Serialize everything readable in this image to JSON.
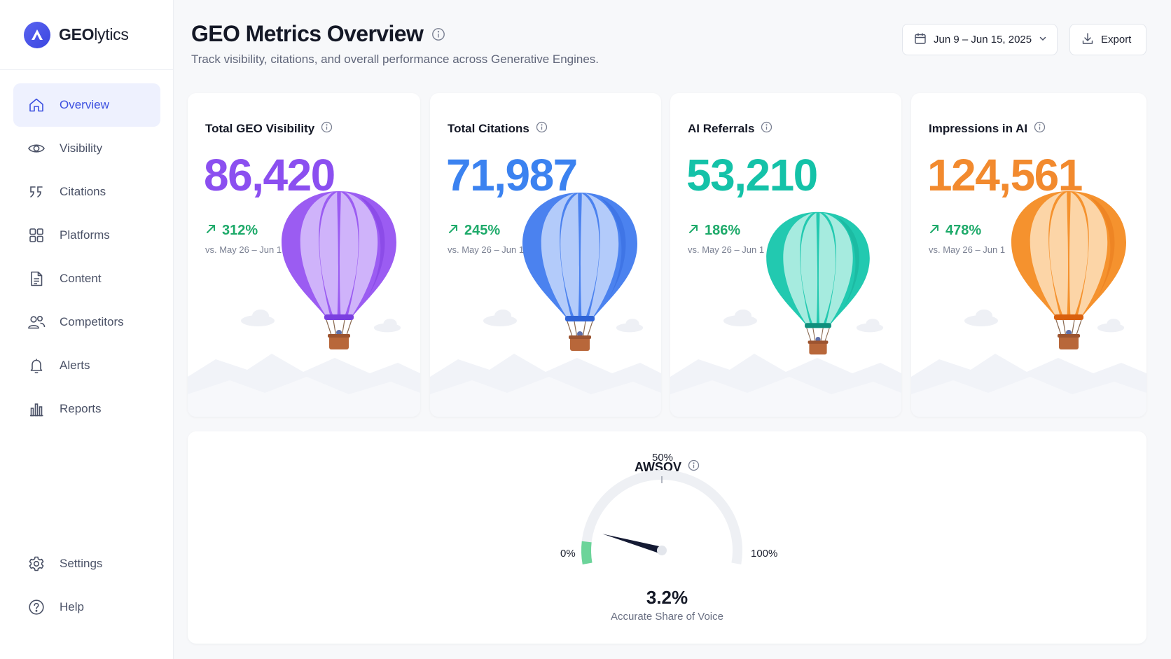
{
  "app": {
    "brand_prefix": "GEO",
    "brand_suffix": "lytics"
  },
  "sidebar": {
    "items": [
      {
        "label": "Overview",
        "icon": "home-icon",
        "active": true
      },
      {
        "label": "Visibility",
        "icon": "eye-icon"
      },
      {
        "label": "Citations",
        "icon": "quote-icon"
      },
      {
        "label": "Platforms",
        "icon": "grid-icon"
      },
      {
        "label": "Content",
        "icon": "document-icon"
      },
      {
        "label": "Competitors",
        "icon": "users-icon"
      },
      {
        "label": "Alerts",
        "icon": "bell-icon"
      },
      {
        "label": "Reports",
        "icon": "bar-chart-icon"
      }
    ],
    "bottom_items": [
      {
        "label": "Settings",
        "icon": "gear-icon"
      },
      {
        "label": "Help",
        "icon": "help-circle-icon"
      }
    ]
  },
  "header": {
    "title": "GEO Metrics Overview",
    "subtitle": "Track visibility, citations, and overall performance across Generative Engines.",
    "date_range": "Jun 9 – Jun 15, 2025",
    "export_label": "Export"
  },
  "cards": [
    {
      "title": "Total GEO Visibility",
      "value": "86,420",
      "delta": "312%",
      "compare": "vs. May 26 – Jun 1",
      "color": "#8b4ff0",
      "balloon": "purple"
    },
    {
      "title": "Total Citations",
      "value": "71,987",
      "delta": "245%",
      "compare": "vs. May 26 – Jun 1",
      "color": "#3b82f0",
      "balloon": "blue"
    },
    {
      "title": "AI Referrals",
      "value": "53,210",
      "delta": "186%",
      "compare": "vs. May 26 – Jun 1",
      "color": "#14c2a8",
      "balloon": "teal"
    },
    {
      "title": "Impressions in AI",
      "value": "124,561",
      "delta": "478%",
      "compare": "vs. May 26 – Jun 1",
      "color": "#f28a2e",
      "balloon": "orange"
    }
  ],
  "gauge": {
    "title": "AWSOV",
    "value_percent": 3.2,
    "value_label": "3.2%",
    "caption": "Accurate Share of Voice",
    "min_label": "0%",
    "mid_label": "50%",
    "max_label": "100%",
    "fill_color": "#6cd49a",
    "track_color": "#eef0f4",
    "needle_color": "#141a33"
  }
}
